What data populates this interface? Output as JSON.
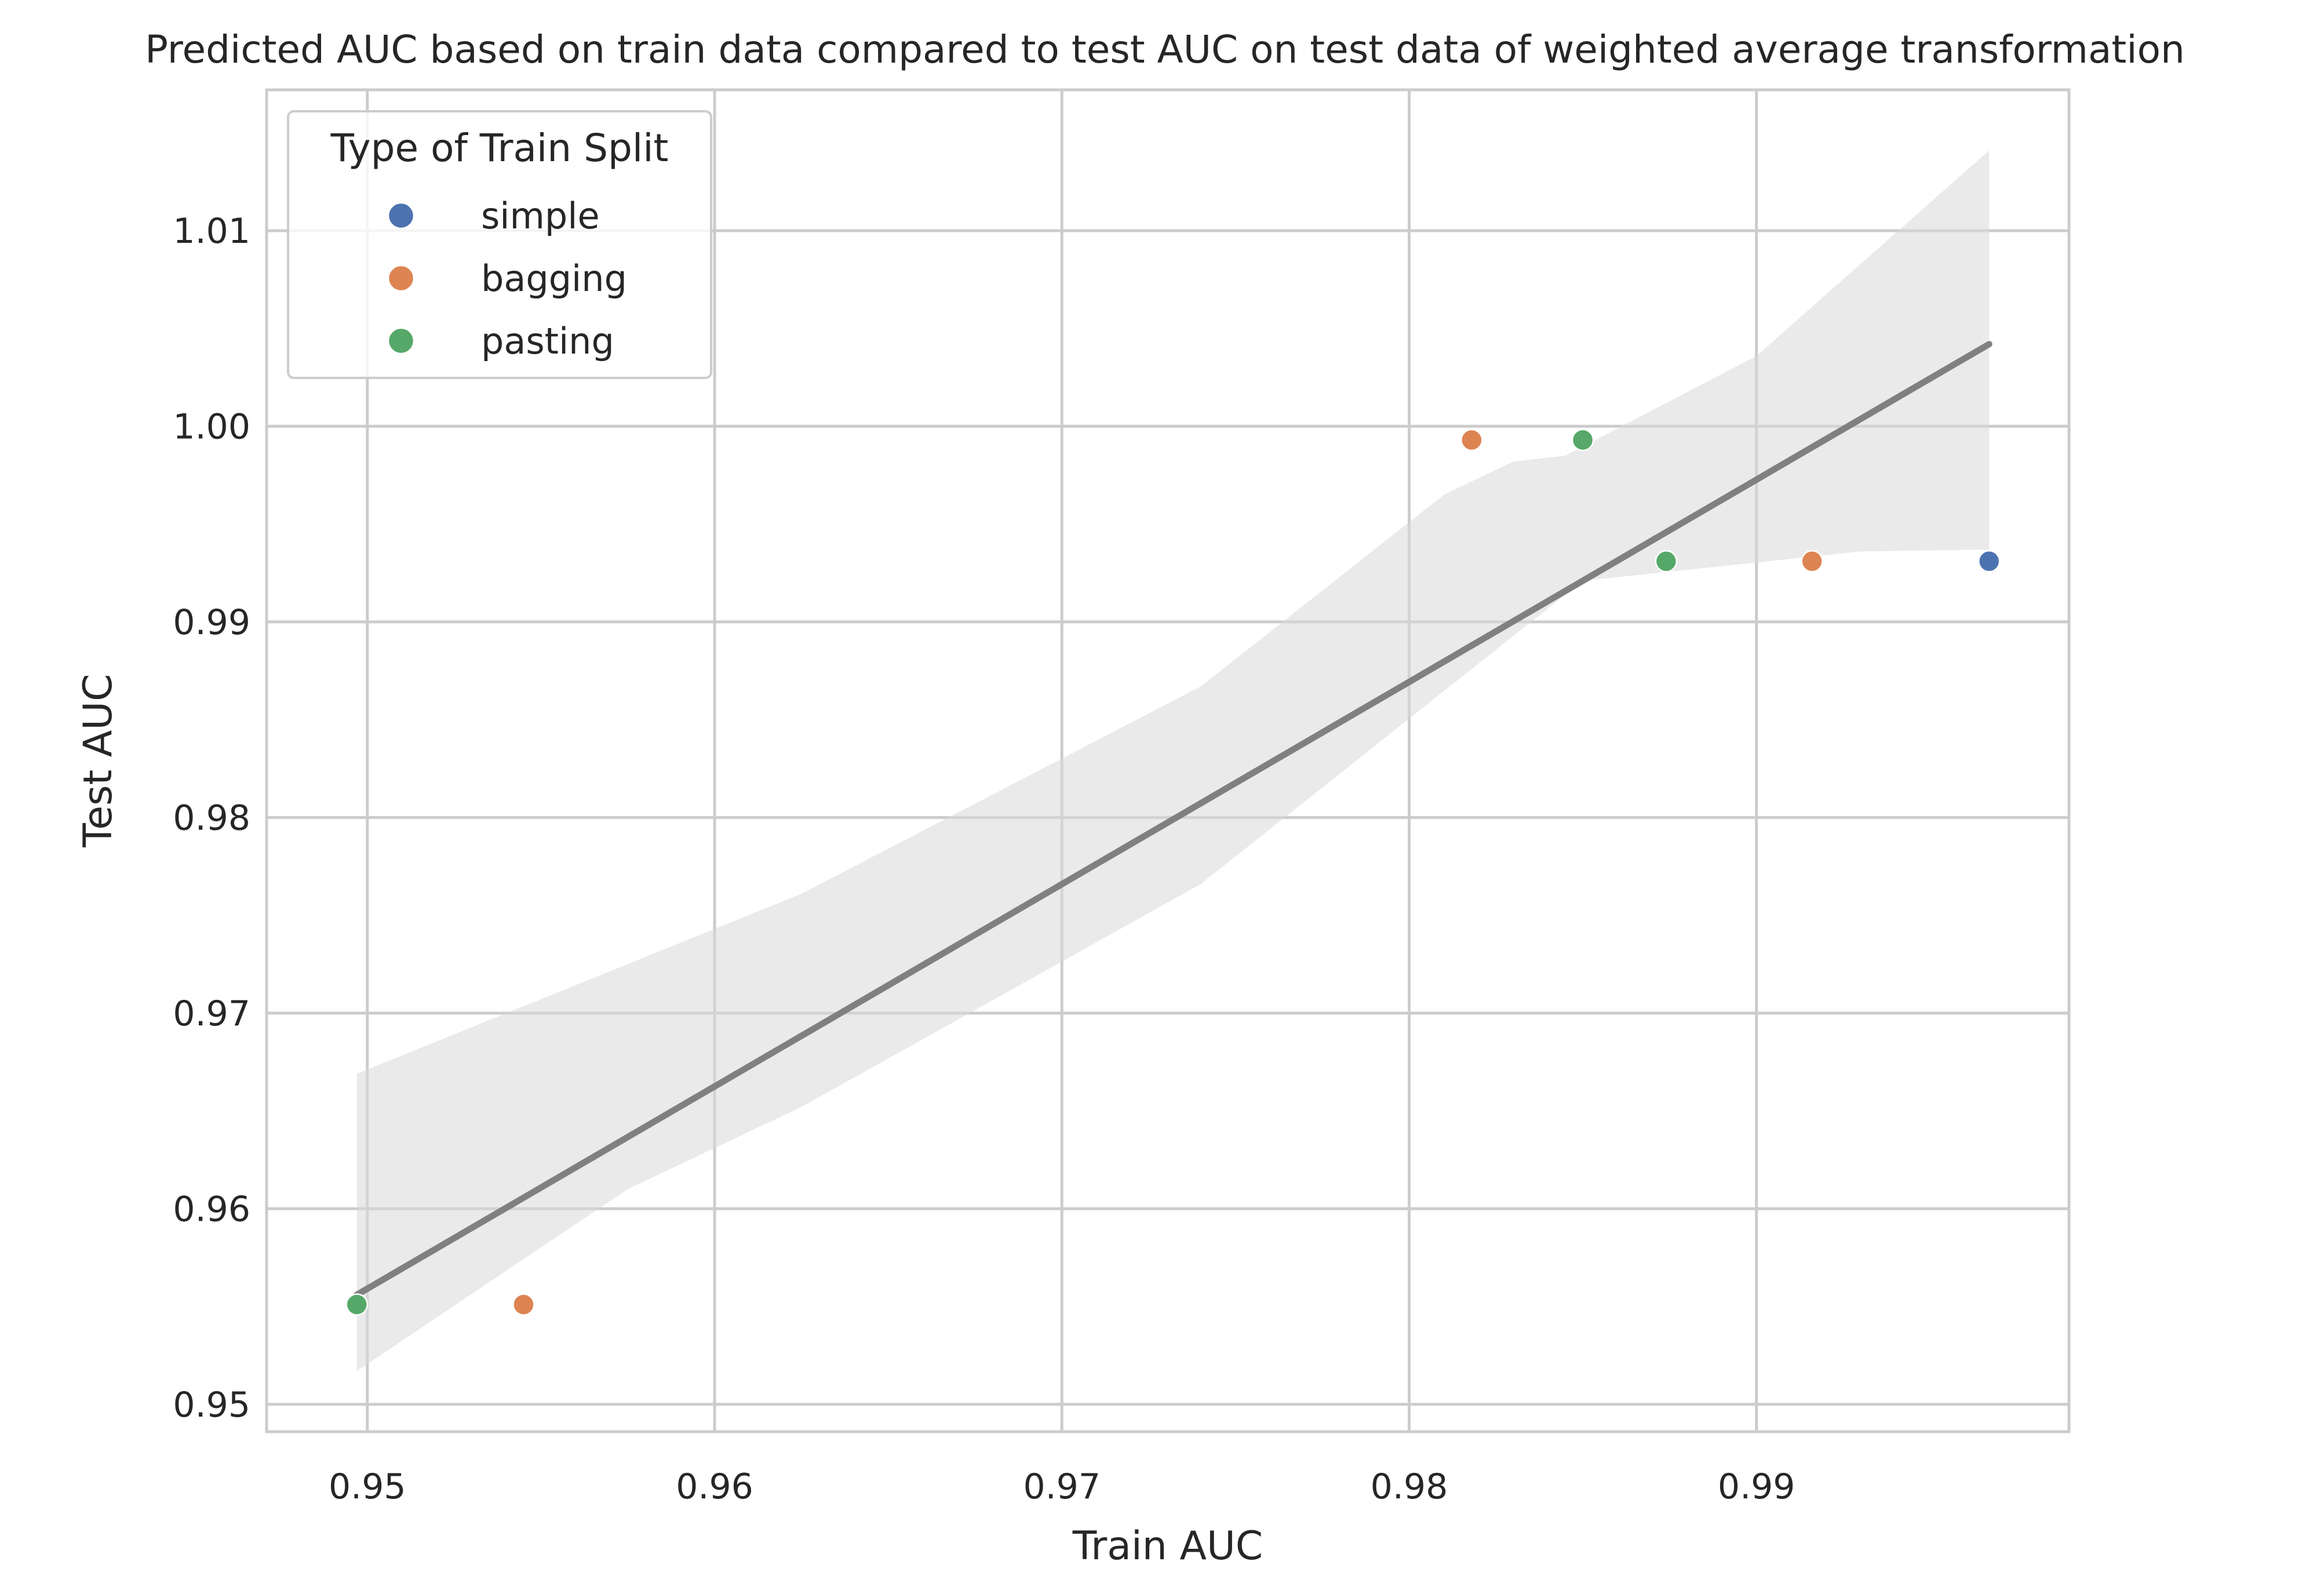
{
  "chart_data": {
    "type": "scatter",
    "title": "Predicted AUC based on train data compared to test AUC on test data of weighted average transformation",
    "xlabel": "Train AUC",
    "ylabel": "Test AUC",
    "xlim": [
      0.9471,
      0.999
    ],
    "ylim": [
      0.9486,
      1.0172
    ],
    "grid": true,
    "x_ticks": [
      0.95,
      0.96,
      0.97,
      0.98,
      0.99
    ],
    "x_tick_labels": [
      "0.95",
      "0.96",
      "0.97",
      "0.98",
      "0.99"
    ],
    "y_ticks": [
      0.95,
      0.96,
      0.97,
      0.98,
      0.99,
      1.0,
      1.01
    ],
    "y_tick_labels": [
      "0.95",
      "0.96",
      "0.97",
      "0.98",
      "0.99",
      "1.00",
      "1.01"
    ],
    "legend": {
      "title": "Type of Train Split",
      "placement": "top-left"
    },
    "series": [
      {
        "name": "simple",
        "color": "#4c72b0",
        "points": [
          [
            0.9967,
            0.9931
          ]
        ]
      },
      {
        "name": "bagging",
        "color": "#dd8452",
        "points": [
          [
            0.9818,
            0.9993
          ],
          [
            0.9545,
            0.9551
          ],
          [
            0.9916,
            0.9931
          ]
        ]
      },
      {
        "name": "pasting",
        "color": "#55a868",
        "points": [
          [
            0.9497,
            0.9551
          ],
          [
            0.985,
            0.9993
          ],
          [
            0.9874,
            0.9931
          ]
        ]
      }
    ],
    "regression": {
      "color": "#808080",
      "line": [
        [
          0.9497,
          0.9556
        ],
        [
          0.9967,
          1.0042
        ]
      ],
      "ci_upper": [
        [
          0.9497,
          0.9669
        ],
        [
          0.9625,
          0.9761
        ],
        [
          0.974,
          0.9867
        ],
        [
          0.981,
          0.9965
        ],
        [
          0.983,
          0.9982
        ],
        [
          0.9845,
          0.9985
        ],
        [
          0.99,
          1.0036
        ],
        [
          0.9967,
          1.0141
        ]
      ],
      "ci_lower": [
        [
          0.9967,
          0.9937
        ],
        [
          0.993,
          0.9936
        ],
        [
          0.985,
          0.9921
        ],
        [
          0.974,
          0.9766
        ],
        [
          0.9625,
          0.9652
        ],
        [
          0.9575,
          0.961
        ],
        [
          0.9497,
          0.9517
        ]
      ]
    }
  }
}
